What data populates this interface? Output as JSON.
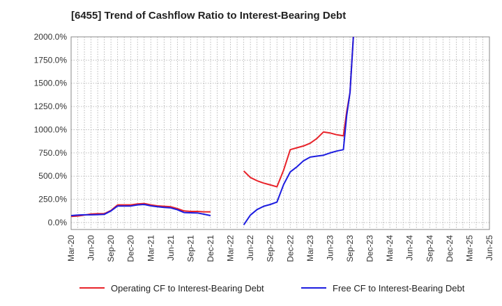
{
  "title": "[6455]  Trend of Cashflow Ratio to Interest-Bearing Debt",
  "chart_data": {
    "type": "line",
    "title": "[6455]  Trend of Cashflow Ratio to Interest-Bearing Debt",
    "xlabel": "",
    "ylabel": "",
    "ylim": [
      -75,
      2000
    ],
    "y_ticks": [
      "0.0%",
      "250.0%",
      "500.0%",
      "750.0%",
      "1000.0%",
      "1250.0%",
      "1500.0%",
      "1750.0%",
      "2000.0%"
    ],
    "y_tick_values": [
      0,
      250,
      500,
      750,
      1000,
      1250,
      1500,
      1750,
      2000
    ],
    "x_ticks": [
      "Mar-20",
      "Jun-20",
      "Sep-20",
      "Dec-20",
      "Mar-21",
      "Jun-21",
      "Sep-21",
      "Dec-21",
      "Mar-22",
      "Jun-22",
      "Sep-22",
      "Dec-22",
      "Mar-23",
      "Jun-23",
      "Sep-23",
      "Dec-23",
      "Mar-24",
      "Jun-24",
      "Sep-24",
      "Dec-24",
      "Mar-25",
      "Jun-25"
    ],
    "grid": true,
    "legend_position": "bottom",
    "series": [
      {
        "name": "Operating CF to Interest-Bearing Debt",
        "color": "#e8232a",
        "points": [
          [
            0,
            65
          ],
          [
            1,
            70
          ],
          [
            2,
            80
          ],
          [
            3,
            92
          ],
          [
            4,
            95
          ],
          [
            5,
            95
          ],
          [
            6,
            130
          ],
          [
            7,
            190
          ],
          [
            8,
            190
          ],
          [
            9,
            190
          ],
          [
            10,
            200
          ],
          [
            11,
            205
          ],
          [
            12,
            190
          ],
          [
            13,
            180
          ],
          [
            14,
            175
          ],
          [
            15,
            170
          ],
          [
            16,
            150
          ],
          [
            17,
            125
          ],
          [
            18,
            120
          ],
          [
            19,
            120
          ],
          [
            20,
            115
          ],
          [
            21,
            115
          ],
          null,
          [
            26,
            555
          ],
          [
            27,
            485
          ],
          [
            28,
            450
          ],
          [
            29,
            425
          ],
          [
            30,
            405
          ],
          [
            31,
            385
          ],
          [
            32,
            565
          ],
          [
            33,
            785
          ],
          [
            34,
            805
          ],
          [
            35,
            825
          ],
          [
            36,
            855
          ],
          [
            37,
            905
          ],
          [
            38,
            975
          ],
          [
            39,
            965
          ],
          [
            40,
            945
          ],
          [
            41,
            935
          ],
          [
            41.5,
            1190
          ],
          [
            42,
            1400
          ],
          [
            42.5,
            2000
          ]
        ]
      },
      {
        "name": "Free CF to Interest-Bearing Debt",
        "color": "#1c1ce0",
        "points": [
          [
            0,
            75
          ],
          [
            1,
            80
          ],
          [
            2,
            83
          ],
          [
            3,
            83
          ],
          [
            4,
            85
          ],
          [
            5,
            88
          ],
          [
            6,
            125
          ],
          [
            7,
            178
          ],
          [
            8,
            178
          ],
          [
            9,
            178
          ],
          [
            10,
            190
          ],
          [
            11,
            195
          ],
          [
            12,
            180
          ],
          [
            13,
            170
          ],
          [
            14,
            163
          ],
          [
            15,
            158
          ],
          [
            16,
            138
          ],
          [
            17,
            108
          ],
          [
            18,
            105
          ],
          [
            19,
            103
          ],
          [
            20,
            90
          ],
          [
            21,
            75
          ],
          null,
          [
            26,
            -25
          ],
          [
            27,
            80
          ],
          [
            28,
            140
          ],
          [
            29,
            175
          ],
          [
            30,
            195
          ],
          [
            31,
            220
          ],
          [
            32,
            410
          ],
          [
            33,
            545
          ],
          [
            34,
            600
          ],
          [
            35,
            665
          ],
          [
            36,
            705
          ],
          [
            37,
            715
          ],
          [
            38,
            725
          ],
          [
            39,
            750
          ],
          [
            40,
            770
          ],
          [
            41,
            785
          ],
          [
            41.5,
            1150
          ],
          [
            42,
            1400
          ],
          [
            42.5,
            2000
          ]
        ]
      }
    ]
  }
}
